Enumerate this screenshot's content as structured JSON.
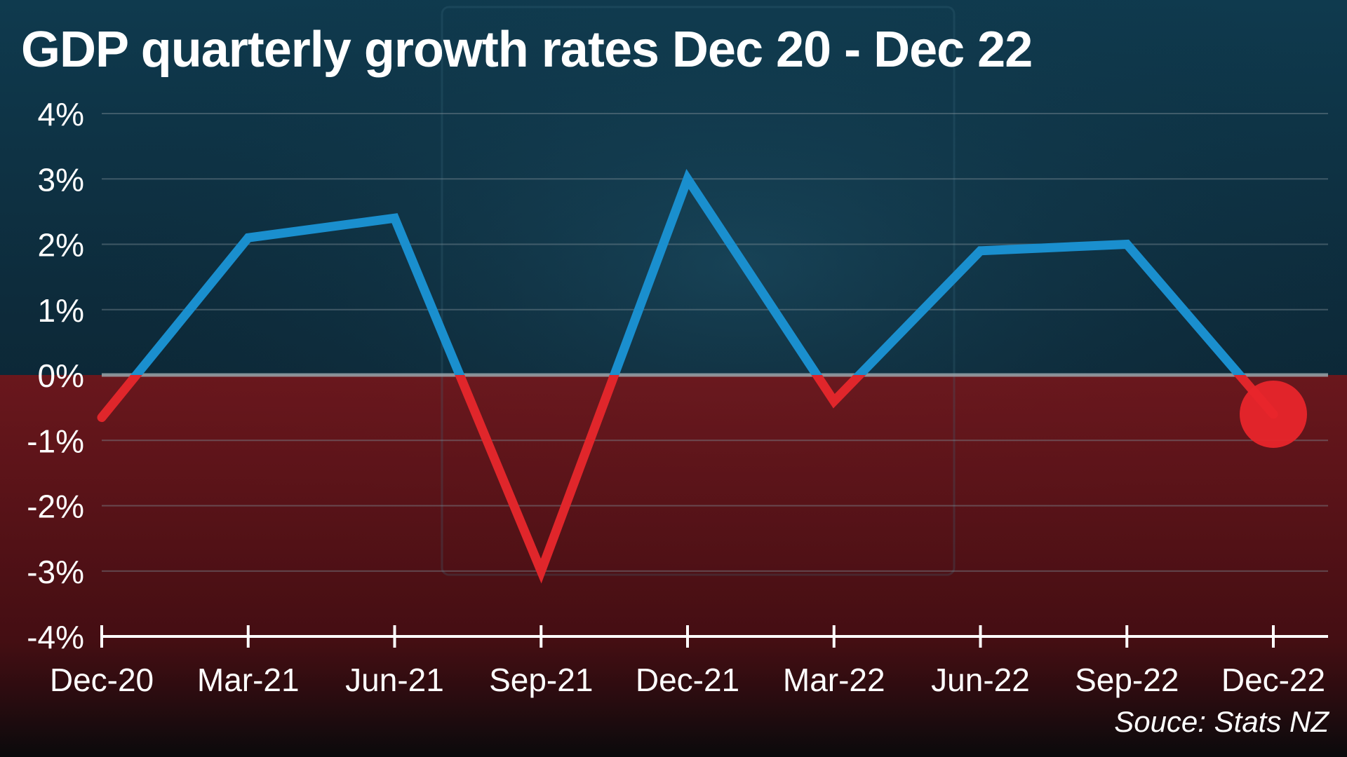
{
  "chart_data": {
    "type": "line",
    "title": "GDP quarterly growth rates Dec 20 - Dec 22",
    "source": "Souce: Stats NZ",
    "xlabel": "",
    "ylabel": "",
    "categories": [
      "Dec-20",
      "Mar-21",
      "Jun-21",
      "Sep-21",
      "Dec-21",
      "Mar-22",
      "Jun-22",
      "Sep-22",
      "Dec-22"
    ],
    "series": [
      {
        "values": [
          -0.65,
          2.1,
          2.4,
          -3.0,
          3.0,
          -0.4,
          1.9,
          2.0,
          -0.6
        ]
      }
    ],
    "y_ticks": [
      {
        "value": 4,
        "label": "4%"
      },
      {
        "value": 3,
        "label": "3%"
      },
      {
        "value": 2,
        "label": "2%"
      },
      {
        "value": 1,
        "label": "1%"
      },
      {
        "value": 0,
        "label": "0%"
      },
      {
        "value": -1,
        "label": "-1%"
      },
      {
        "value": -2,
        "label": "-2%"
      },
      {
        "value": -3,
        "label": "-3%"
      },
      {
        "value": -4,
        "label": "-4%"
      }
    ],
    "ylim": [
      -4,
      4
    ],
    "grid": true,
    "colors": {
      "positive": "#1a8fce",
      "negative": "#e0262b",
      "negative_band": "#6a1216",
      "marker": "#e8252b"
    }
  }
}
